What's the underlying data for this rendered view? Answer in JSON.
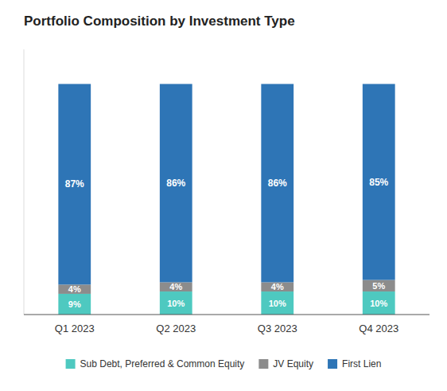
{
  "chart_data": {
    "type": "bar",
    "stacked": true,
    "title": "Portfolio Composition by Investment Type",
    "categories": [
      "Q1 2023",
      "Q2 2023",
      "Q3 2023",
      "Q4 2023"
    ],
    "series": [
      {
        "name": "Sub Debt, Preferred & Common Equity",
        "color": "#4ec9c0",
        "values": [
          9,
          10,
          10,
          10
        ],
        "value_labels": [
          "9%",
          "10%",
          "10%",
          "10%"
        ]
      },
      {
        "name": "JV Equity",
        "color": "#8c8c8c",
        "values": [
          4,
          4,
          4,
          5
        ],
        "value_labels": [
          "4%",
          "4%",
          "4%",
          "5%"
        ]
      },
      {
        "name": "First Lien",
        "color": "#2e75b6",
        "values": [
          87,
          86,
          86,
          85
        ],
        "value_labels": [
          "87%",
          "86%",
          "86%",
          "85%"
        ]
      }
    ],
    "ylim": [
      0,
      115
    ],
    "grid": false,
    "legend": "bottom",
    "data_labels": true,
    "tick_labels": "x"
  }
}
